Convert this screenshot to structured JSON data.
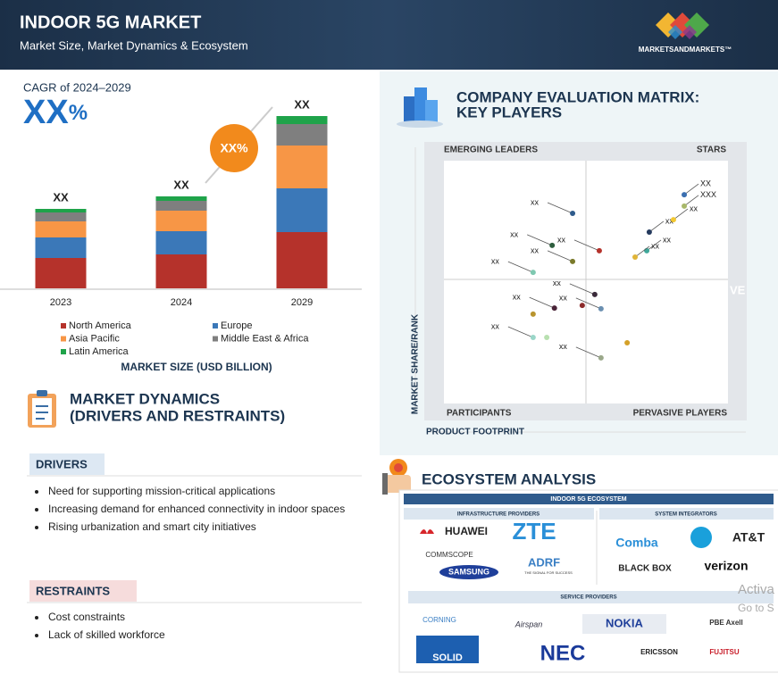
{
  "header": {
    "title": "INDOOR 5G MARKET",
    "subtitle": "Market Size, Market Dynamics & Ecosystem",
    "brand": "MARKETSANDMARKETS™"
  },
  "cagr": {
    "label": "CAGR of 2024–2029",
    "value": "XX",
    "unit": "%",
    "bubble": "XX%"
  },
  "chart_data": {
    "type": "bar",
    "stacked": true,
    "caption": "MARKET SIZE (USD BILLION)",
    "categories": [
      "2023",
      "2024",
      "2029"
    ],
    "total_labels": [
      "XX",
      "XX",
      "XX"
    ],
    "ylim": [
      0,
      200
    ],
    "series": [
      {
        "name": "North America",
        "color": "#b5322b",
        "values": [
          34,
          38,
          63
        ]
      },
      {
        "name": "Europe",
        "color": "#3b78b8",
        "values": [
          23,
          26,
          49
        ]
      },
      {
        "name": "Asia Pacific",
        "color": "#f79646",
        "values": [
          18,
          23,
          48
        ]
      },
      {
        "name": "Middle East & Africa",
        "color": "#7f7f7f",
        "values": [
          10,
          11,
          24
        ]
      },
      {
        "name": "Latin America",
        "color": "#1fa34a",
        "values": [
          4,
          5,
          9
        ]
      }
    ]
  },
  "dynamics": {
    "title": [
      "MARKET DYNAMICS",
      "(DRIVERS AND RESTRAINTS)"
    ],
    "drivers": {
      "label": "DRIVERS",
      "items": [
        "Need for supporting mission-critical applications",
        "Increasing demand for enhanced connectivity in indoor spaces",
        "Rising urbanization and smart city initiatives"
      ]
    },
    "restraints": {
      "label": "RESTRAINTS",
      "items": [
        "Cost constraints",
        "Lack of skilled workforce"
      ]
    }
  },
  "matrix": {
    "title": [
      "COMPANY EVALUATION MATRIX:",
      "KEY PLAYERS"
    ],
    "quadrants": [
      "EMERGING LEADERS",
      "STARS",
      "PARTICIPANTS",
      "PERVASIVE PLAYERS"
    ],
    "x_label": "PRODUCT FOOTPRINT",
    "y_label": "MARKET SHARE/RANK",
    "clipped": "VE",
    "xlim": [
      0,
      100
    ],
    "ylim": [
      0,
      100
    ],
    "points": {
      "x": [
        45.3,
        38.1,
        31.4,
        45.3,
        54.7,
        72.3,
        84.6,
        84.6,
        80.8,
        71.4,
        67.3,
        38.9,
        31.4,
        48.7,
        53.1,
        55.3,
        31.4,
        36.2,
        64.5,
        55.3
      ],
      "y": [
        78.3,
        65.1,
        54.0,
        58.5,
        62.9,
        70.6,
        86.0,
        81.3,
        75.7,
        62.9,
        60.3,
        39.3,
        36.8,
        40.4,
        44.9,
        39.0,
        27.2,
        27.2,
        25.0,
        18.8
      ],
      "labels": [
        "xx",
        "xx",
        "xx",
        "xx",
        "xx",
        "xx",
        "XX",
        "XXX",
        "xx",
        "xx",
        "xx",
        "xx",
        null,
        null,
        "xx",
        "xx",
        "xx",
        null,
        null,
        "xx"
      ],
      "colors": [
        "#2f5b8c",
        "#2e5e3e",
        "#7fc8b0",
        "#7a7a2a",
        "#b5322b",
        "#243a5e",
        "#3b6fb0",
        "#a8b86a",
        "#f2c832",
        "#3fa89a",
        "#e0b437",
        "#4a2438",
        "#b8942e",
        "#8c2a2a",
        "#3a2a3a",
        "#6a8fb0",
        "#9ad6c8",
        "#b8e0b0",
        "#d4a028",
        "#9aa88a"
      ]
    }
  },
  "ecosystem": {
    "title": "ECOSYSTEM ANALYSIS",
    "header": "INDOOR 5G ECOSYSTEM",
    "groups": [
      "INFRASTRUCTURE PROVIDERS",
      "SYSTEM INTEGRATORS",
      "SERVICE PROVIDERS"
    ],
    "infrastructure": [
      "HUAWEI",
      "ZTE",
      "COMMSCOPE",
      "SAMSUNG",
      "ADRF",
      "THE SIGNAL FOR SUCCESS"
    ],
    "integrators": [
      "Comba",
      "AT&T",
      "BLACK BOX",
      "verizon"
    ],
    "service": [
      "CORNING",
      "Airspan",
      "NOKIA",
      "PBE Axell",
      "SOLID",
      "NEC",
      "ERICSSON",
      "FUJITSU"
    ]
  },
  "overlay": [
    "Activa",
    "Go to S"
  ]
}
